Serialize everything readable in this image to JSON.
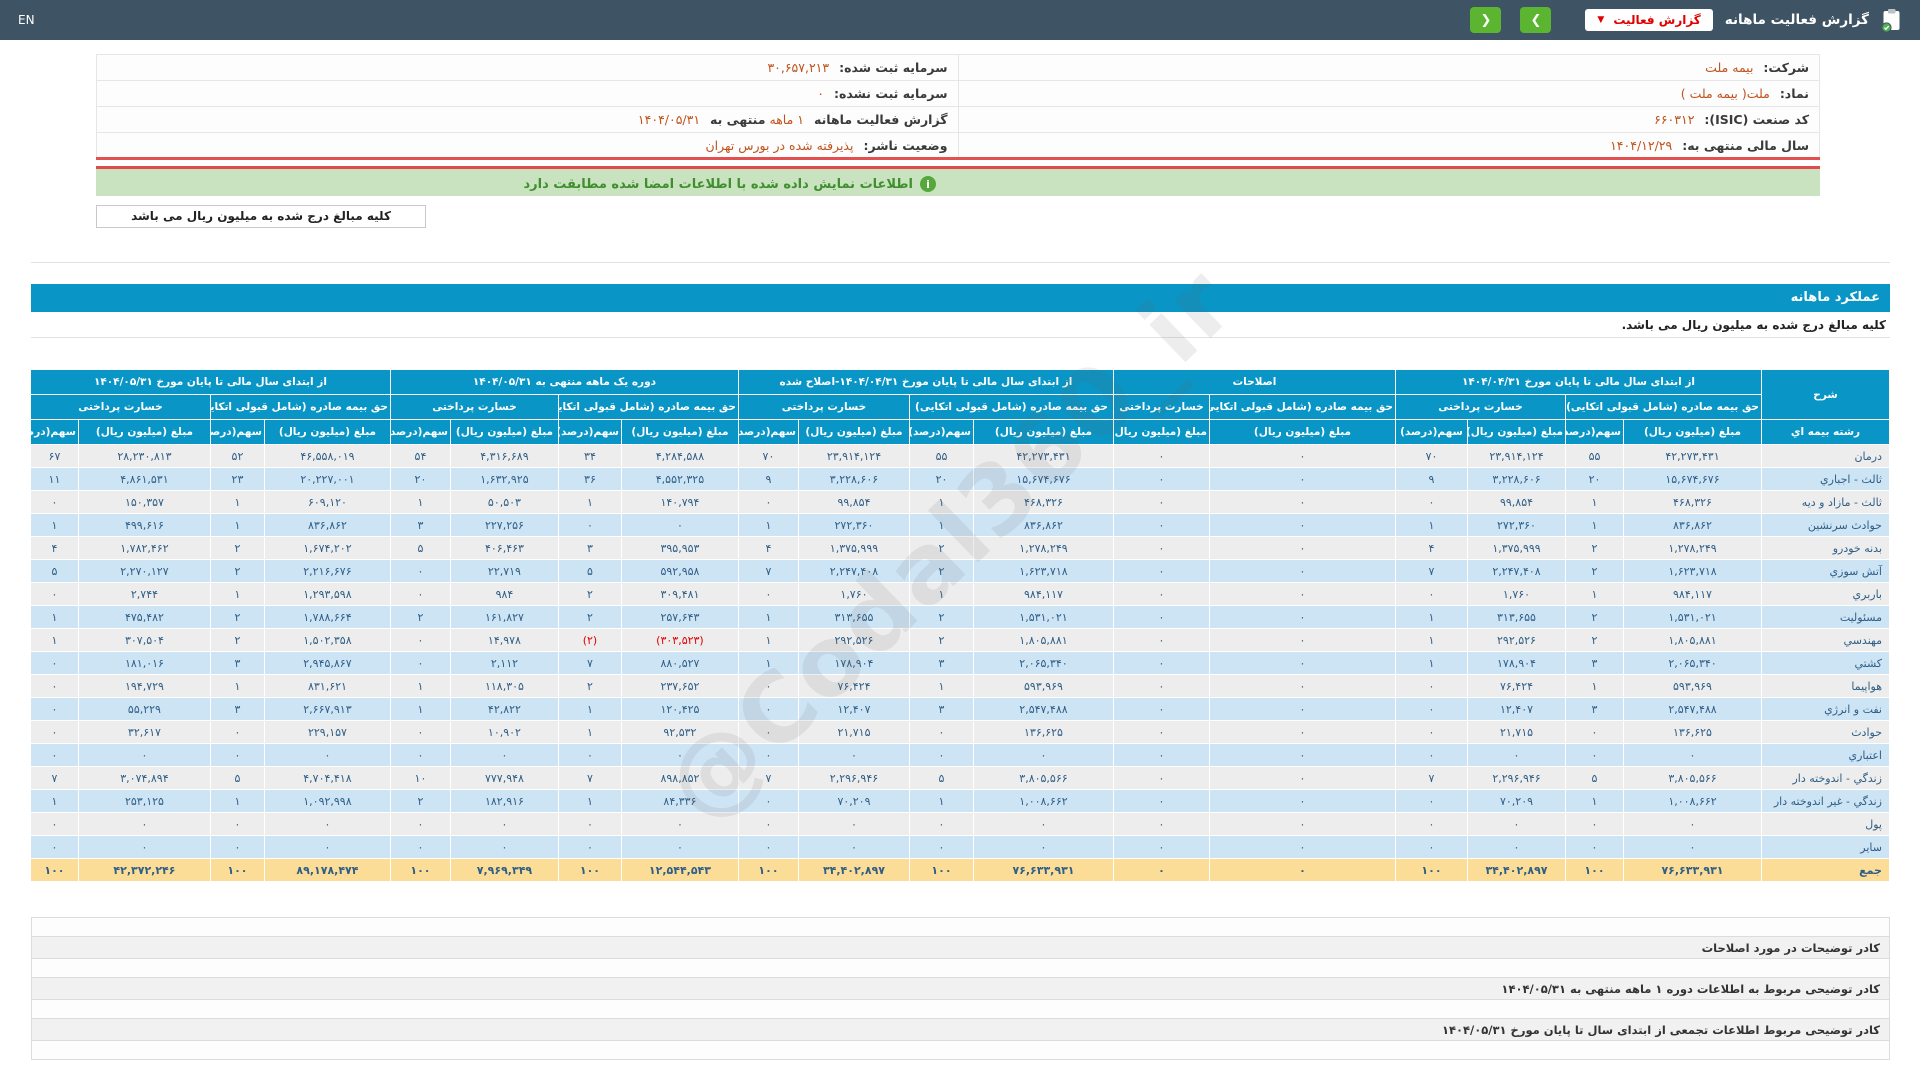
{
  "topbar": {
    "title": "گزارش فعالیت ماهانه",
    "dropdown_label": "گزارش فعالیت",
    "lang": "EN"
  },
  "icons": {
    "chevron_down": "▼",
    "chevron_left": "❮",
    "chevron_right": "❯",
    "info": "i"
  },
  "colors": {
    "topbar_bg": "#3e5364",
    "accent_blue": "#0995c5",
    "button_green": "#5cb531",
    "alert_red": "#e00000",
    "value_orange": "#c0531d",
    "row_gray": "#ededed",
    "row_blue": "#cde4f5",
    "total_row_bg": "#fbdd97",
    "banner_green_bg": "#c9e3c0"
  },
  "info": {
    "company_label": "شرکت:",
    "company": "بیمه ملت",
    "symbol_label": "نماد:",
    "symbol": "ملت( بیمه ملت )",
    "isic_label": "کد صنعت (ISIC):",
    "isic": "۶۶۰۳۱۲",
    "fiscal_year_label": "سال مالی منتهی به:",
    "fiscal_year": "۱۴۰۴/۱۲/۲۹",
    "registered_capital_label": "سرمایه ثبت شده:",
    "registered_capital": "۳۰,۶۵۷,۲۱۳",
    "unregistered_capital_label": "سرمایه ثبت نشده:",
    "unregistered_capital": "۰",
    "report_label_prefix": "گزارش فعالیت ماهانه",
    "report_period": "۱ ماهه",
    "report_label_mid": "منتهی به",
    "report_end_date": "۱۴۰۴/۰۵/۳۱",
    "listing_label": "وضعیت ناشر:",
    "listing_status": "پذیرفته شده در بورس تهران"
  },
  "banner": {
    "text": "اطلاعات نمایش داده شده با اطلاعات امضا شده مطابقت دارد"
  },
  "notes": {
    "unit_note": "کلیه مبالغ درج شده به میلیون ریال می باشد"
  },
  "main": {
    "section_title": "عملکرد ماهانه",
    "unit_note": "کلیه مبالغ درج شده به میلیون ریال می باشد."
  },
  "watermark": "@Codal360_ir",
  "table": {
    "row_header_title": "شرح",
    "row_header_sub": "رشته بیمه اي",
    "col_amount": "مبلغ (میلیون ریال)",
    "col_share": "سهم(درصد)",
    "sub_premium": "حق بیمه صادره (شامل قبولی اتکایی)",
    "sub_claims": "خسارت پرداختی",
    "groups": [
      {
        "label": "از ابتدای سال مالی تا پایان مورخ ۱۴۰۴/۰۴/۳۱",
        "cols": 4
      },
      {
        "label": "اصلاحات",
        "cols": 2
      },
      {
        "label": "از ابتدای سال مالی تا پایان مورخ ۱۴۰۴/۰۴/۳۱-اصلاح شده",
        "cols": 4
      },
      {
        "label": "دوره یک ماهه منتهی به ۱۴۰۴/۰۵/۳۱",
        "cols": 4
      },
      {
        "label": "از ابتدای سال مالی تا پایان مورخ ۱۴۰۴/۰۵/۳۱",
        "cols": 4
      }
    ],
    "rows": [
      {
        "label": "درمان",
        "values": [
          "۴۲,۲۷۳,۴۳۱",
          "۵۵",
          "۲۳,۹۱۴,۱۲۴",
          "۷۰",
          "۰",
          "۰",
          "۴۲,۲۷۳,۴۳۱",
          "۵۵",
          "۲۳,۹۱۴,۱۲۴",
          "۷۰",
          "۴,۲۸۴,۵۸۸",
          "۳۴",
          "۴,۳۱۶,۶۸۹",
          "۵۴",
          "۴۶,۵۵۸,۰۱۹",
          "۵۲",
          "۲۸,۲۳۰,۸۱۳",
          "۶۷"
        ]
      },
      {
        "label": "ثالث - اجباري",
        "values": [
          "۱۵,۶۷۴,۶۷۶",
          "۲۰",
          "۳,۲۲۸,۶۰۶",
          "۹",
          "۰",
          "۰",
          "۱۵,۶۷۴,۶۷۶",
          "۲۰",
          "۳,۲۲۸,۶۰۶",
          "۹",
          "۴,۵۵۲,۳۲۵",
          "۳۶",
          "۱,۶۳۲,۹۲۵",
          "۲۰",
          "۲۰,۲۲۷,۰۰۱",
          "۲۳",
          "۴,۸۶۱,۵۳۱",
          "۱۱"
        ]
      },
      {
        "label": "ثالث - مازاد و دیه",
        "values": [
          "۴۶۸,۳۲۶",
          "۱",
          "۹۹,۸۵۴",
          "۰",
          "۰",
          "۰",
          "۴۶۸,۳۲۶",
          "۱",
          "۹۹,۸۵۴",
          "۰",
          "۱۴۰,۷۹۴",
          "۱",
          "۵۰,۵۰۳",
          "۱",
          "۶۰۹,۱۲۰",
          "۱",
          "۱۵۰,۳۵۷",
          "۰"
        ]
      },
      {
        "label": "حوادث سرنشین",
        "values": [
          "۸۳۶,۸۶۲",
          "۱",
          "۲۷۲,۳۶۰",
          "۱",
          "۰",
          "۰",
          "۸۳۶,۸۶۲",
          "۱",
          "۲۷۲,۳۶۰",
          "۱",
          "۰",
          "۰",
          "۲۲۷,۲۵۶",
          "۳",
          "۸۳۶,۸۶۲",
          "۱",
          "۴۹۹,۶۱۶",
          "۱"
        ]
      },
      {
        "label": "بدنه خودرو",
        "values": [
          "۱,۲۷۸,۲۴۹",
          "۲",
          "۱,۳۷۵,۹۹۹",
          "۴",
          "۰",
          "۰",
          "۱,۲۷۸,۲۴۹",
          "۲",
          "۱,۳۷۵,۹۹۹",
          "۴",
          "۳۹۵,۹۵۳",
          "۳",
          "۴۰۶,۴۶۳",
          "۵",
          "۱,۶۷۴,۲۰۲",
          "۲",
          "۱,۷۸۲,۴۶۲",
          "۴"
        ]
      },
      {
        "label": "آتش سوزي",
        "values": [
          "۱,۶۲۳,۷۱۸",
          "۲",
          "۲,۲۴۷,۴۰۸",
          "۷",
          "۰",
          "۰",
          "۱,۶۲۳,۷۱۸",
          "۲",
          "۲,۲۴۷,۴۰۸",
          "۷",
          "۵۹۲,۹۵۸",
          "۵",
          "۲۲,۷۱۹",
          "۰",
          "۲,۲۱۶,۶۷۶",
          "۲",
          "۲,۲۷۰,۱۲۷",
          "۵"
        ]
      },
      {
        "label": "باربري",
        "values": [
          "۹۸۴,۱۱۷",
          "۱",
          "۱,۷۶۰",
          "۰",
          "۰",
          "۰",
          "۹۸۴,۱۱۷",
          "۱",
          "۱,۷۶۰",
          "۰",
          "۳۰۹,۴۸۱",
          "۲",
          "۹۸۴",
          "۰",
          "۱,۲۹۳,۵۹۸",
          "۱",
          "۲,۷۴۴",
          "۰"
        ]
      },
      {
        "label": "مسئولیت",
        "values": [
          "۱,۵۳۱,۰۲۱",
          "۲",
          "۳۱۳,۶۵۵",
          "۱",
          "۰",
          "۰",
          "۱,۵۳۱,۰۲۱",
          "۲",
          "۳۱۳,۶۵۵",
          "۱",
          "۲۵۷,۶۴۳",
          "۲",
          "۱۶۱,۸۲۷",
          "۲",
          "۱,۷۸۸,۶۶۴",
          "۲",
          "۴۷۵,۴۸۲",
          "۱"
        ]
      },
      {
        "label": "مهندسي",
        "values": [
          "۱,۸۰۵,۸۸۱",
          "۲",
          "۲۹۲,۵۲۶",
          "۱",
          "۰",
          "۰",
          "۱,۸۰۵,۸۸۱",
          "۲",
          "۲۹۲,۵۲۶",
          "۱",
          "(۳۰۳,۵۲۳)",
          "(۲)",
          "۱۴,۹۷۸",
          "۰",
          "۱,۵۰۲,۳۵۸",
          "۲",
          "۳۰۷,۵۰۴",
          "۱"
        ]
      },
      {
        "label": "کشتي",
        "values": [
          "۲,۰۶۵,۳۴۰",
          "۳",
          "۱۷۸,۹۰۴",
          "۱",
          "۰",
          "۰",
          "۲,۰۶۵,۳۴۰",
          "۳",
          "۱۷۸,۹۰۴",
          "۱",
          "۸۸۰,۵۲۷",
          "۷",
          "۲,۱۱۲",
          "۰",
          "۲,۹۴۵,۸۶۷",
          "۳",
          "۱۸۱,۰۱۶",
          "۰"
        ]
      },
      {
        "label": "هواپیما",
        "values": [
          "۵۹۳,۹۶۹",
          "۱",
          "۷۶,۴۲۴",
          "۰",
          "۰",
          "۰",
          "۵۹۳,۹۶۹",
          "۱",
          "۷۶,۴۲۴",
          "۰",
          "۲۳۷,۶۵۲",
          "۲",
          "۱۱۸,۳۰۵",
          "۱",
          "۸۳۱,۶۲۱",
          "۱",
          "۱۹۴,۷۲۹",
          "۰"
        ]
      },
      {
        "label": "نفت و انرژي",
        "values": [
          "۲,۵۴۷,۴۸۸",
          "۳",
          "۱۲,۴۰۷",
          "۰",
          "۰",
          "۰",
          "۲,۵۴۷,۴۸۸",
          "۳",
          "۱۲,۴۰۷",
          "۰",
          "۱۲۰,۴۲۵",
          "۱",
          "۴۲,۸۲۲",
          "۱",
          "۲,۶۶۷,۹۱۳",
          "۳",
          "۵۵,۲۲۹",
          "۰"
        ]
      },
      {
        "label": "حوادث",
        "values": [
          "۱۳۶,۶۲۵",
          "۰",
          "۲۱,۷۱۵",
          "۰",
          "۰",
          "۰",
          "۱۳۶,۶۲۵",
          "۰",
          "۲۱,۷۱۵",
          "۰",
          "۹۲,۵۳۲",
          "۱",
          "۱۰,۹۰۲",
          "۰",
          "۲۲۹,۱۵۷",
          "۰",
          "۳۲,۶۱۷",
          "۰"
        ]
      },
      {
        "label": "اعتباري",
        "values": [
          "۰",
          "۰",
          "۰",
          "۰",
          "۰",
          "۰",
          "۰",
          "۰",
          "۰",
          "۰",
          "۰",
          "۰",
          "۰",
          "۰",
          "۰",
          "۰",
          "۰",
          "۰"
        ]
      },
      {
        "label": "زندگي - اندوخته دار",
        "values": [
          "۳,۸۰۵,۵۶۶",
          "۵",
          "۲,۲۹۶,۹۴۶",
          "۷",
          "۰",
          "۰",
          "۳,۸۰۵,۵۶۶",
          "۵",
          "۲,۲۹۶,۹۴۶",
          "۷",
          "۸۹۸,۸۵۲",
          "۷",
          "۷۷۷,۹۴۸",
          "۱۰",
          "۴,۷۰۴,۴۱۸",
          "۵",
          "۳,۰۷۴,۸۹۴",
          "۷"
        ]
      },
      {
        "label": "زندگي - غیر اندوخته دار",
        "values": [
          "۱,۰۰۸,۶۶۲",
          "۱",
          "۷۰,۲۰۹",
          "۰",
          "۰",
          "۰",
          "۱,۰۰۸,۶۶۲",
          "۱",
          "۷۰,۲۰۹",
          "۰",
          "۸۴,۳۳۶",
          "۱",
          "۱۸۲,۹۱۶",
          "۲",
          "۱,۰۹۲,۹۹۸",
          "۱",
          "۲۵۳,۱۲۵",
          "۱"
        ]
      },
      {
        "label": "پول",
        "values": [
          "۰",
          "۰",
          "۰",
          "۰",
          "۰",
          "۰",
          "۰",
          "۰",
          "۰",
          "۰",
          "۰",
          "۰",
          "۰",
          "۰",
          "۰",
          "۰",
          "۰",
          "۰"
        ]
      },
      {
        "label": "سایر",
        "values": [
          "۰",
          "۰",
          "۰",
          "۰",
          "۰",
          "۰",
          "۰",
          "۰",
          "۰",
          "۰",
          "۰",
          "۰",
          "۰",
          "۰",
          "۰",
          "۰",
          "۰",
          "۰"
        ]
      },
      {
        "label": "جمع",
        "total": true,
        "values": [
          "۷۶,۶۳۳,۹۳۱",
          "۱۰۰",
          "۳۴,۴۰۲,۸۹۷",
          "۱۰۰",
          "۰",
          "۰",
          "۷۶,۶۳۳,۹۳۱",
          "۱۰۰",
          "۳۴,۴۰۲,۸۹۷",
          "۱۰۰",
          "۱۲,۵۴۴,۵۴۳",
          "۱۰۰",
          "۷,۹۶۹,۳۴۹",
          "۱۰۰",
          "۸۹,۱۷۸,۴۷۴",
          "۱۰۰",
          "۴۲,۳۷۲,۲۴۶",
          "۱۰۰"
        ]
      }
    ]
  },
  "bottom": {
    "labels": [
      "کادر توضیحات در مورد اصلاحات",
      "کادر توضیحی مربوط به اطلاعات دوره ۱ ماهه منتهی به ۱۴۰۴/۰۵/۳۱",
      "کادر توضیحی مربوط اطلاعات تجمعی از ابتدای سال تا پایان مورخ ۱۴۰۴/۰۵/۳۱"
    ]
  }
}
